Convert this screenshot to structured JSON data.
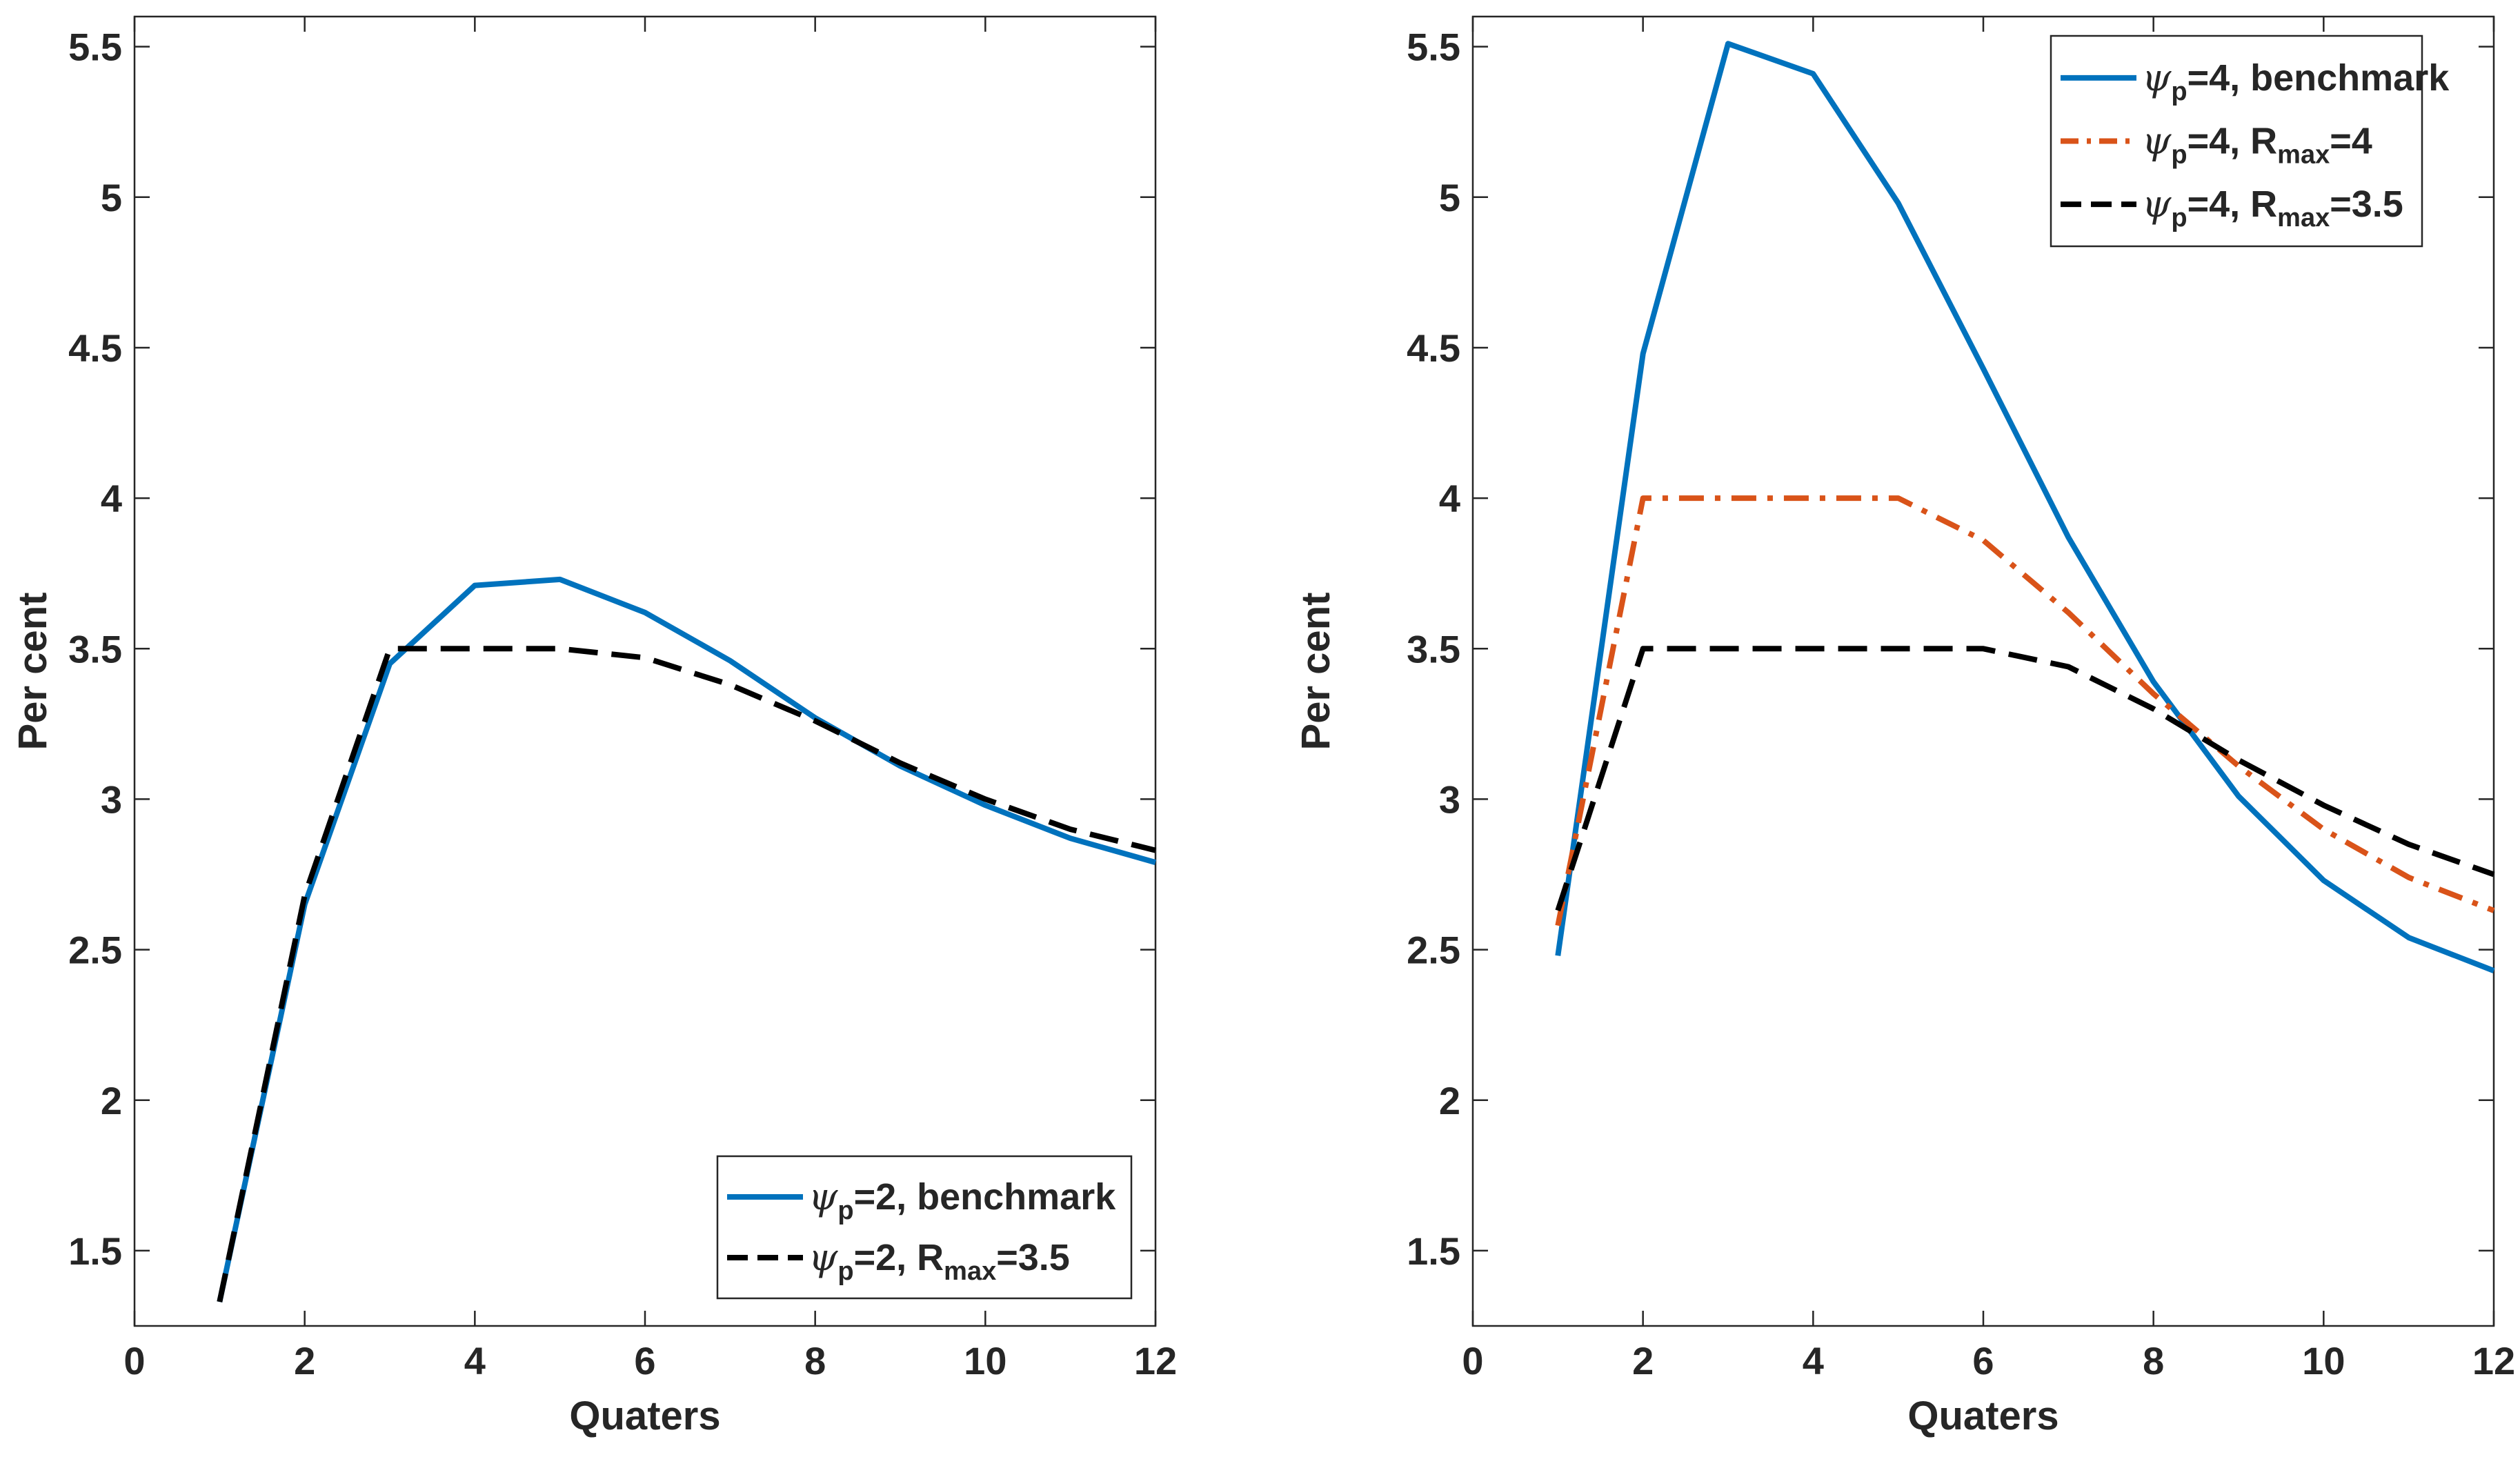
{
  "chart_data": [
    {
      "type": "line",
      "title": "",
      "xlabel": "Quaters",
      "ylabel": "Per cent",
      "xlim": [
        0,
        12
      ],
      "ylim": [
        1.25,
        5.6
      ],
      "xticks": [
        0,
        2,
        4,
        6,
        8,
        10,
        12
      ],
      "xtick_labels": [
        "0",
        "2",
        "4",
        "6",
        "8",
        "10",
        "12"
      ],
      "yticks": [
        1.5,
        2,
        2.5,
        3,
        3.5,
        4,
        4.5,
        5,
        5.5
      ],
      "ytick_labels": [
        "1.5",
        "2",
        "2.5",
        "3",
        "3.5",
        "4",
        "4.5",
        "5",
        "5.5"
      ],
      "grid": false,
      "legend_position": "bottom-right",
      "series": [
        {
          "name": "ψp=2, benchmark",
          "legend": {
            "psi": "ψ",
            "sub": "p",
            "pre": "=2, benchmark",
            "rsub": "",
            "post": ""
          },
          "color": "#0072BD",
          "style": "solid",
          "x": [
            1,
            2,
            3,
            4,
            5,
            6,
            7,
            8,
            9,
            10,
            11,
            12
          ],
          "values": [
            1.33,
            2.65,
            3.45,
            3.71,
            3.73,
            3.62,
            3.46,
            3.27,
            3.11,
            2.98,
            2.87,
            2.79
          ]
        },
        {
          "name": "ψp=2, Rmax=3.5",
          "legend": {
            "psi": "ψ",
            "sub": "p",
            "pre": "=2, R",
            "rsub": "max",
            "post": "=3.5"
          },
          "color": "#000000",
          "style": "dash",
          "x": [
            1,
            2,
            3,
            4,
            5,
            6,
            7,
            8,
            9,
            10,
            11,
            12
          ],
          "values": [
            1.33,
            2.68,
            3.5,
            3.5,
            3.5,
            3.47,
            3.38,
            3.26,
            3.12,
            3.0,
            2.9,
            2.83
          ]
        }
      ]
    },
    {
      "type": "line",
      "title": "",
      "xlabel": "Quaters",
      "ylabel": "Per cent",
      "xlim": [
        0,
        12
      ],
      "ylim": [
        1.25,
        5.6
      ],
      "xticks": [
        0,
        2,
        4,
        6,
        8,
        10,
        12
      ],
      "xtick_labels": [
        "0",
        "2",
        "4",
        "6",
        "8",
        "10",
        "12"
      ],
      "yticks": [
        1.5,
        2,
        2.5,
        3,
        3.5,
        4,
        4.5,
        5,
        5.5
      ],
      "ytick_labels": [
        "1.5",
        "2",
        "2.5",
        "3",
        "3.5",
        "4",
        "4.5",
        "5",
        "5.5"
      ],
      "grid": false,
      "legend_position": "top-right",
      "series": [
        {
          "name": "ψp=4, benchmark",
          "legend": {
            "psi": "ψ",
            "sub": "p",
            "pre": "=4, benchmark",
            "rsub": "",
            "post": ""
          },
          "color": "#0072BD",
          "style": "solid",
          "x": [
            1,
            2,
            3,
            4,
            5,
            6,
            7,
            8,
            9,
            10,
            11,
            12
          ],
          "values": [
            2.48,
            4.48,
            5.51,
            5.41,
            4.98,
            4.43,
            3.87,
            3.39,
            3.01,
            2.73,
            2.54,
            2.43
          ]
        },
        {
          "name": "ψp=4, Rmax=4",
          "legend": {
            "psi": "ψ",
            "sub": "p",
            "pre": "=4, R",
            "rsub": "max",
            "post": "=4"
          },
          "color": "#D95319",
          "style": "dashdot",
          "x": [
            1,
            2,
            3,
            4,
            5,
            6,
            7,
            8,
            9,
            10,
            11,
            12
          ],
          "values": [
            2.58,
            4.0,
            4.0,
            4.0,
            4.0,
            3.86,
            3.62,
            3.35,
            3.11,
            2.9,
            2.74,
            2.63
          ]
        },
        {
          "name": "ψp=4, Rmax=3.5",
          "legend": {
            "psi": "ψ",
            "sub": "p",
            "pre": "=4, R",
            "rsub": "max",
            "post": "=3.5"
          },
          "color": "#000000",
          "style": "dash",
          "x": [
            1,
            2,
            3,
            4,
            5,
            6,
            7,
            8,
            9,
            10,
            11,
            12
          ],
          "values": [
            2.63,
            3.5,
            3.5,
            3.5,
            3.5,
            3.5,
            3.44,
            3.3,
            3.13,
            2.98,
            2.85,
            2.75
          ]
        }
      ]
    }
  ]
}
